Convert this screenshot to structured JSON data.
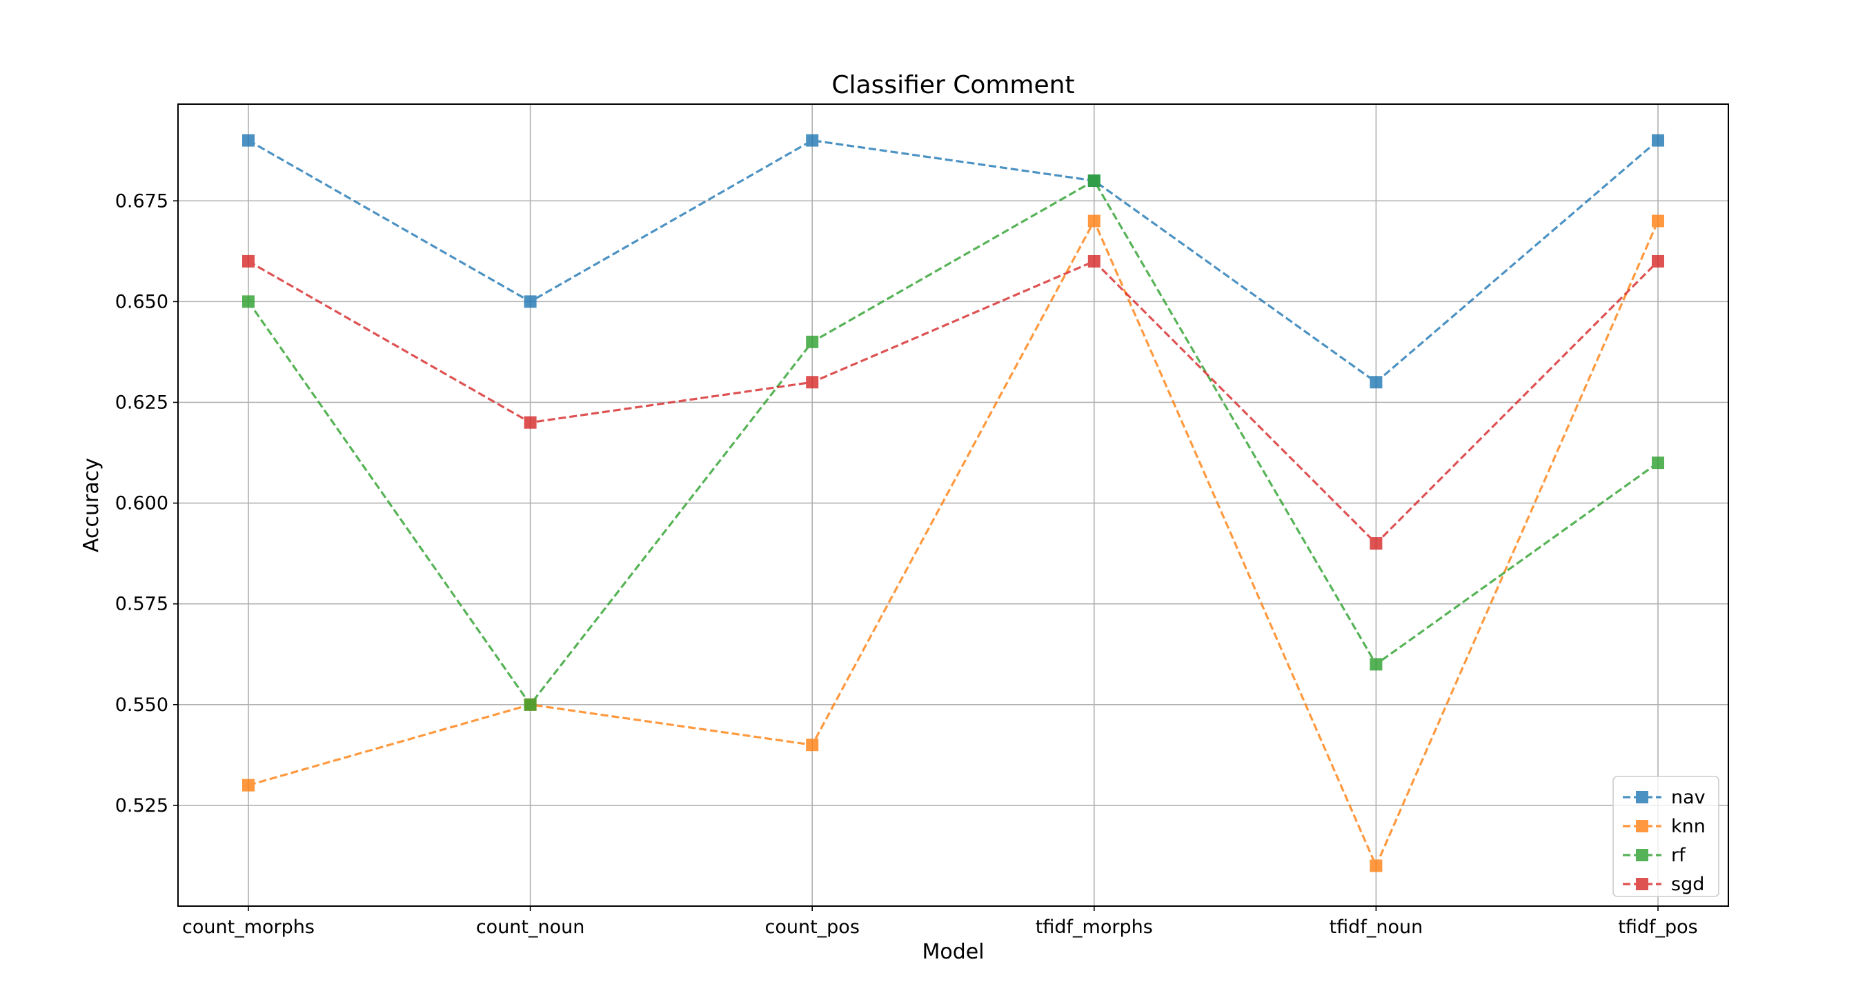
{
  "chart_data": {
    "type": "line",
    "title": "Classifier Comment",
    "xlabel": "Model",
    "ylabel": "Accuracy",
    "categories": [
      "count_morphs",
      "count_noun",
      "count_pos",
      "tfidf_morphs",
      "tfidf_noun",
      "tfidf_pos"
    ],
    "ylim": [
      0.5,
      0.699
    ],
    "yticks": [
      "0.525",
      "0.550",
      "0.575",
      "0.600",
      "0.625",
      "0.650",
      "0.675"
    ],
    "grid": true,
    "line_style": "dashed",
    "marker": "square",
    "legend_position": "lower-right",
    "series": [
      {
        "name": "nav",
        "color": "#1f77b4",
        "values": [
          0.69,
          0.65,
          0.69,
          0.68,
          0.63,
          0.69
        ]
      },
      {
        "name": "knn",
        "color": "#ff7f0e",
        "values": [
          0.53,
          0.55,
          0.54,
          0.67,
          0.51,
          0.67
        ]
      },
      {
        "name": "rf",
        "color": "#2ca02c",
        "values": [
          0.65,
          0.55,
          0.64,
          0.68,
          0.56,
          0.61
        ]
      },
      {
        "name": "sgd",
        "color": "#d62728",
        "values": [
          0.66,
          0.62,
          0.63,
          0.66,
          0.59,
          0.66
        ]
      }
    ]
  }
}
